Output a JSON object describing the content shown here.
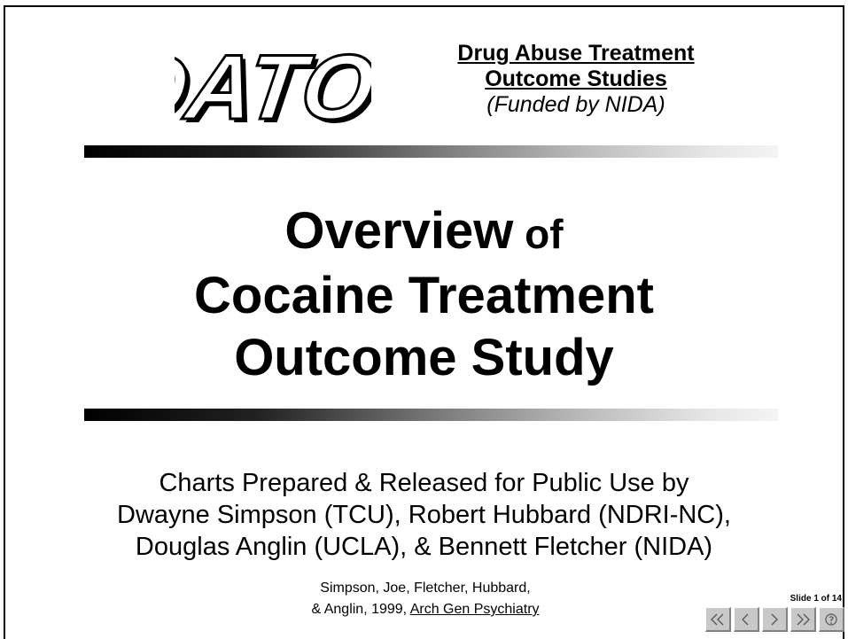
{
  "logo": {
    "text": "DATOS"
  },
  "header": {
    "line1": "Drug Abuse Treatment",
    "line2": "Outcome Studies",
    "line3": "(Funded by NIDA)"
  },
  "title": {
    "line1_main": "Overview",
    "line1_of": " of",
    "line2": "Cocaine Treatment",
    "line3": "Outcome Study"
  },
  "credits": {
    "line1": "Charts Prepared & Released for Public Use by",
    "line2": "Dwayne Simpson (TCU), Robert Hubbard (NDRI-NC),",
    "line3": "Douglas Anglin (UCLA), & Bennett Fletcher (NIDA)"
  },
  "reference": {
    "line1": "Simpson, Joe, Fletcher, Hubbard,",
    "line2_prefix": "& Anglin, 1999, ",
    "journal": "Arch Gen Psychiatry"
  },
  "slide_indicator": "Slide 1 of 14",
  "nav": {
    "buttons": [
      "first-slide-icon",
      "previous-slide-icon",
      "next-slide-icon",
      "last-slide-icon",
      "help-icon"
    ]
  }
}
